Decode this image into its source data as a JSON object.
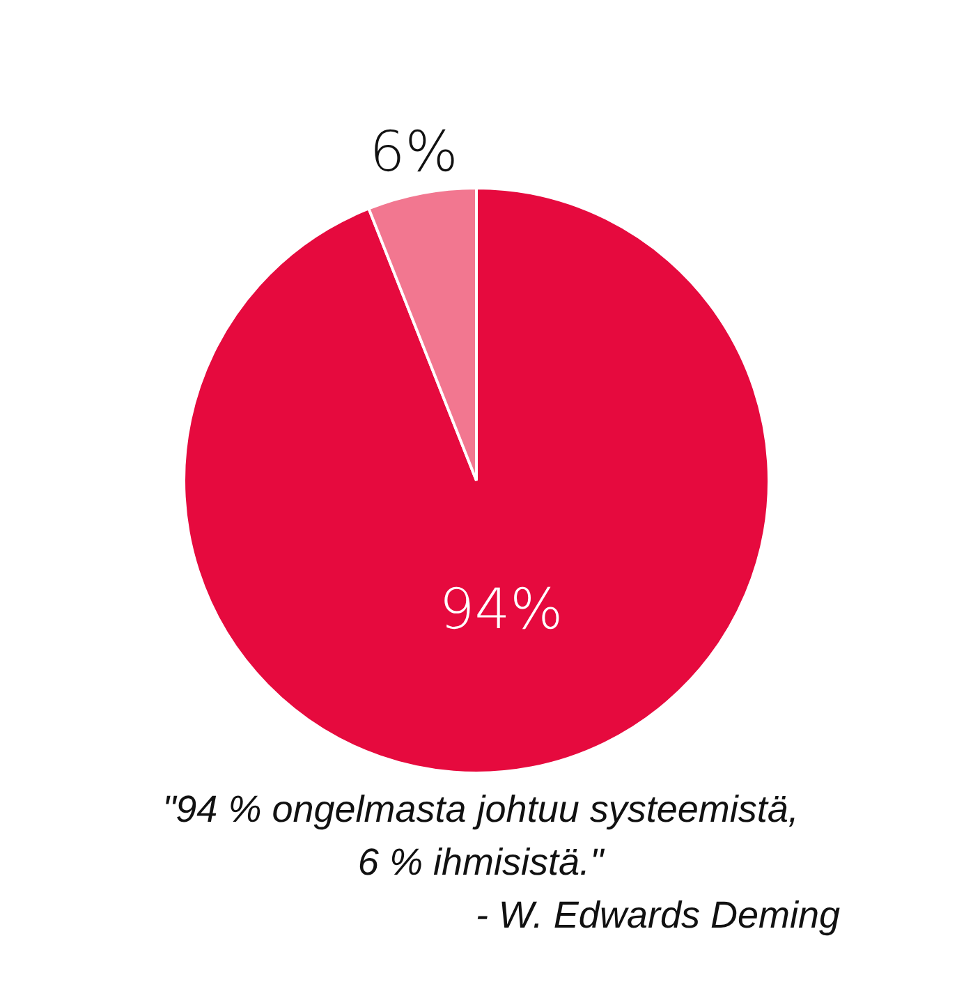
{
  "chart_data": {
    "type": "pie",
    "categories": [
      null,
      null
    ],
    "values": [
      94,
      6
    ],
    "colors": [
      "#e60a3e",
      "#f27790"
    ],
    "value_labels": [
      "94%",
      "6%"
    ],
    "data_labels": true,
    "annotations": [
      "\"94 % ongelmasta johtuu systeemistä, 6 % ihmisistä.\"",
      "- W. Edwards Deming"
    ]
  }
}
